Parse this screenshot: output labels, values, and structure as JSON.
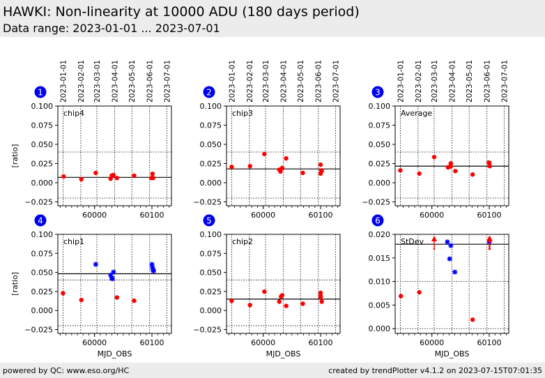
{
  "header": {
    "title": "HAWKI: Non-linearity at 10000 ADU (180 days period)",
    "subtitle": "Data range: 2023-01-01 ... 2023-07-01"
  },
  "footer": {
    "left": "powered by QC: www.eso.org/HC",
    "right": "created by trendPlotter v4.1.2 on 2023-07-15T07:01:35"
  },
  "colors": {
    "point": "#ff0000",
    "star": "#0000ff",
    "badge": "#0000ee",
    "header_bg": "#ececec"
  },
  "chart_data": [
    {
      "type": "scatter",
      "panel": "1",
      "label": "chip4",
      "ylabel": "[ratio]",
      "xlabel": "",
      "ylim": [
        -0.03,
        0.1
      ],
      "yticks": [
        "0.100",
        "0.075",
        "0.050",
        "0.025",
        "0.000",
        "−0.025"
      ],
      "ytick_values": [
        0.1,
        0.075,
        0.05,
        0.025,
        0.0,
        -0.025
      ],
      "xlim": [
        59936,
        60134
      ],
      "xticks": [
        "60000",
        "60100"
      ],
      "xtick_values": [
        60000,
        60100
      ],
      "date_ticks": [
        "2023-01-01",
        "2023-02-01",
        "2023-03-01",
        "2023-04-01",
        "2023-05-01",
        "2023-06-01",
        "2023-07-01"
      ],
      "date_tick_mjd": [
        59945,
        59976,
        60004,
        60035,
        60065,
        60096,
        60126
      ],
      "hlines": [
        0.04,
        -0.02
      ],
      "mean": 0.007,
      "series": [
        {
          "name": "points",
          "marker": "circle",
          "color": "#ff0000",
          "x": [
            59946,
            59977,
            60002,
            60028,
            60030,
            60033,
            60039,
            60069,
            60099,
            60101,
            60102
          ],
          "y": [
            0.0082,
            0.0046,
            0.0128,
            0.0052,
            0.0094,
            0.01,
            0.0061,
            0.0091,
            0.0061,
            0.0116,
            0.0061
          ]
        }
      ]
    },
    {
      "type": "scatter",
      "panel": "2",
      "label": "chip3",
      "ylabel": "",
      "xlabel": "",
      "ylim": [
        -0.03,
        0.1
      ],
      "yticks": [
        "0.100",
        "0.075",
        "0.050",
        "0.025",
        "0.000",
        "−0.025"
      ],
      "ytick_values": [
        0.1,
        0.075,
        0.05,
        0.025,
        0.0,
        -0.025
      ],
      "xlim": [
        59936,
        60134
      ],
      "xticks": [
        "60000",
        "60100"
      ],
      "xtick_values": [
        60000,
        60100
      ],
      "date_ticks": [
        "2023-01-01",
        "2023-02-01",
        "2023-03-01",
        "2023-04-01",
        "2023-05-01",
        "2023-06-01",
        "2023-07-01"
      ],
      "date_tick_mjd": [
        59945,
        59976,
        60004,
        60035,
        60065,
        60096,
        60126
      ],
      "hlines": [
        0.04,
        -0.02
      ],
      "mean": 0.018,
      "series": [
        {
          "name": "points",
          "marker": "circle",
          "color": "#ff0000",
          "x": [
            59945,
            59977,
            60002,
            60028,
            60030,
            60033,
            60040,
            60069,
            60100,
            60100,
            60102,
            60101
          ],
          "y": [
            0.0207,
            0.0216,
            0.0374,
            0.017,
            0.0146,
            0.0192,
            0.0317,
            0.0128,
            0.0235,
            0.0119,
            0.0155,
            0.016
          ]
        }
      ]
    },
    {
      "type": "scatter",
      "panel": "3",
      "label": "Average",
      "ylabel": "",
      "xlabel": "",
      "ylim": [
        -0.03,
        0.1
      ],
      "yticks": [
        "0.100",
        "0.075",
        "0.050",
        "0.025",
        "0.000",
        "−0.025"
      ],
      "ytick_values": [
        0.1,
        0.075,
        0.05,
        0.025,
        0.0,
        -0.025
      ],
      "xlim": [
        59936,
        60134
      ],
      "xticks": [
        "60000",
        "60100"
      ],
      "xtick_values": [
        60000,
        60100
      ],
      "date_ticks": [
        "2023-01-01",
        "2023-02-01",
        "2023-03-01",
        "2023-04-01",
        "2023-05-01",
        "2023-06-01",
        "2023-07-01"
      ],
      "date_tick_mjd": [
        59945,
        59976,
        60004,
        60035,
        60065,
        60096,
        60126
      ],
      "hlines": [
        0.04,
        -0.02
      ],
      "mean": 0.0216,
      "series": [
        {
          "name": "points",
          "marker": "circle",
          "color": "#ff0000",
          "x": [
            59945,
            59978,
            60004,
            60028,
            60031,
            60033,
            60033,
            60041,
            60071,
            60099,
            60100,
            60101
          ],
          "y": [
            0.0161,
            0.0119,
            0.0335,
            0.0201,
            0.0207,
            0.0253,
            0.0213,
            0.0152,
            0.0107,
            0.0262,
            0.026,
            0.0216
          ]
        }
      ]
    },
    {
      "type": "scatter",
      "panel": "4",
      "label": "chip1",
      "ylabel": "[ratio]",
      "xlabel": "MJD_OBS",
      "ylim": [
        -0.03,
        0.1
      ],
      "yticks": [
        "0.100",
        "0.075",
        "0.050",
        "0.025",
        "0.000",
        "−0.025"
      ],
      "ytick_values": [
        0.1,
        0.075,
        0.05,
        0.025,
        0.0,
        -0.025
      ],
      "xlim": [
        59936,
        60134
      ],
      "xticks": [
        "60000",
        "60100"
      ],
      "xtick_values": [
        60000,
        60100
      ],
      "date_mjd": [
        59945,
        59976,
        60004,
        60035,
        60065,
        60096,
        60126
      ],
      "hlines": [
        0.04,
        -0.02
      ],
      "mean": 0.0483,
      "series": [
        {
          "name": "points",
          "marker": "circle",
          "color": "#ff0000",
          "x": [
            59945,
            59977,
            60039,
            60069
          ],
          "y": [
            0.0227,
            0.0138,
            0.0171,
            0.0128
          ]
        },
        {
          "name": "outliers",
          "marker": "star",
          "color": "#0000ff",
          "x": [
            60002,
            60028,
            60030,
            60031,
            60033,
            60100,
            60101,
            60102,
            60103
          ],
          "y": [
            0.0606,
            0.0465,
            0.0428,
            0.0416,
            0.0505,
            0.0606,
            0.0566,
            0.053,
            0.052
          ]
        }
      ]
    },
    {
      "type": "scatter",
      "panel": "5",
      "label": "chip2",
      "ylabel": "",
      "xlabel": "MJD_OBS",
      "ylim": [
        -0.03,
        0.1
      ],
      "yticks": [
        "0.100",
        "0.075",
        "0.050",
        "0.025",
        "0.000",
        "−0.025"
      ],
      "ytick_values": [
        0.1,
        0.075,
        0.05,
        0.025,
        0.0,
        -0.025
      ],
      "xlim": [
        59936,
        60134
      ],
      "xticks": [
        "60000",
        "60100"
      ],
      "xtick_values": [
        60000,
        60100
      ],
      "date_mjd": [
        59945,
        59976,
        60004,
        60035,
        60065,
        60096,
        60126
      ],
      "hlines": [
        0.04,
        -0.02
      ],
      "mean": 0.015,
      "series": [
        {
          "name": "points",
          "marker": "circle",
          "color": "#ff0000",
          "x": [
            59945,
            59977,
            60002,
            60028,
            60031,
            60033,
            60040,
            60069,
            60100,
            60100,
            60100,
            60102
          ],
          "y": [
            0.0126,
            0.0071,
            0.0248,
            0.0116,
            0.0183,
            0.0199,
            0.0061,
            0.0089,
            0.0232,
            0.0193,
            0.0177,
            0.0116
          ]
        }
      ]
    },
    {
      "type": "scatter",
      "panel": "6",
      "label": "StDev",
      "ylabel": "",
      "xlabel": "MJD_OBS",
      "ylim": [
        -0.001,
        0.02
      ],
      "yticks": [
        "0.020",
        "0.015",
        "0.010",
        "0.005",
        "0.000"
      ],
      "ytick_values": [
        0.02,
        0.015,
        0.01,
        0.005,
        0.0
      ],
      "xlim": [
        59936,
        60134
      ],
      "xticks": [
        "60000",
        "60100"
      ],
      "xtick_values": [
        60000,
        60100
      ],
      "date_mjd": [
        59945,
        59976,
        60004,
        60035,
        60065,
        60096,
        60126
      ],
      "hlines": [
        0.01,
        0.0
      ],
      "mean": 0.0179,
      "series": [
        {
          "name": "points",
          "marker": "circle",
          "color": "#ff0000",
          "x": [
            59946,
            59978,
            60071
          ],
          "y": [
            0.0069,
            0.0077,
            0.0019
          ]
        },
        {
          "name": "outliers",
          "marker": "star",
          "color": "#0000ff",
          "x": [
            60027,
            60033,
            60031,
            60040,
            60100
          ],
          "y": [
            0.0184,
            0.0176,
            0.0148,
            0.012,
            0.0183
          ]
        },
        {
          "name": "out-of-range",
          "marker": "arrow-up",
          "color": "#ff0000",
          "x": [
            60004,
            60100,
            60101
          ],
          "y": [
            0.02,
            0.02,
            0.02
          ]
        }
      ]
    }
  ]
}
